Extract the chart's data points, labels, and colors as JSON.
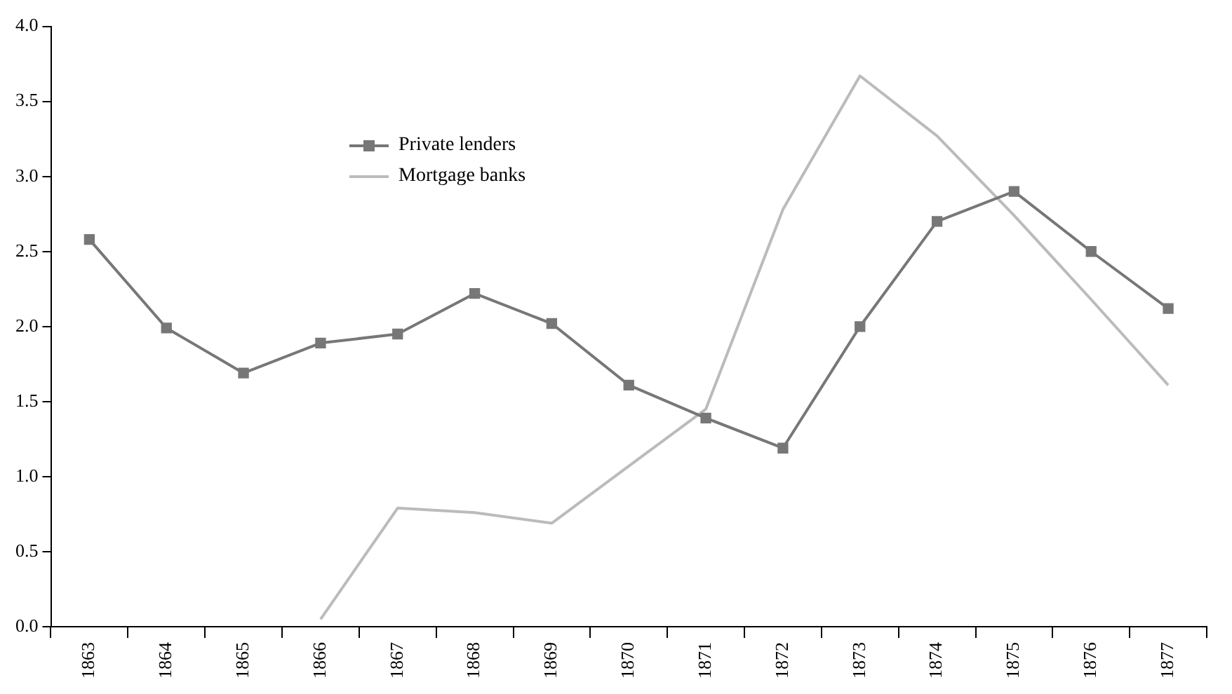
{
  "chart_data": {
    "type": "line",
    "categories": [
      "1863",
      "1864",
      "1865",
      "1866",
      "1867",
      "1868",
      "1869",
      "1870",
      "1871",
      "1872",
      "1873",
      "1874",
      "1875",
      "1876",
      "1877"
    ],
    "series": [
      {
        "name": "Private lenders",
        "color": "#777777",
        "marker": "square",
        "values": [
          2.58,
          1.99,
          1.69,
          1.89,
          1.95,
          2.22,
          2.02,
          1.61,
          1.39,
          1.19,
          2.0,
          2.7,
          2.9,
          2.5,
          2.12
        ]
      },
      {
        "name": "Mortgage banks",
        "color": "#bbbbbb",
        "marker": "none",
        "values": [
          null,
          null,
          null,
          0.05,
          0.79,
          0.76,
          0.69,
          1.07,
          1.45,
          2.78,
          3.67,
          3.27,
          2.74,
          2.18,
          1.61
        ]
      }
    ],
    "ylim": [
      0,
      4
    ],
    "yticks": [
      {
        "value": 0,
        "label": "0.0"
      },
      0.5,
      {
        "value": 1,
        "label": "1.0"
      },
      1.5,
      {
        "value": 2,
        "label": "2.0"
      },
      2.5,
      {
        "value": 3,
        "label": "3.0"
      },
      3.5,
      {
        "value": 4,
        "label": "4.0"
      }
    ],
    "grid": false,
    "legend": "top left",
    "line_style": "solid"
  }
}
